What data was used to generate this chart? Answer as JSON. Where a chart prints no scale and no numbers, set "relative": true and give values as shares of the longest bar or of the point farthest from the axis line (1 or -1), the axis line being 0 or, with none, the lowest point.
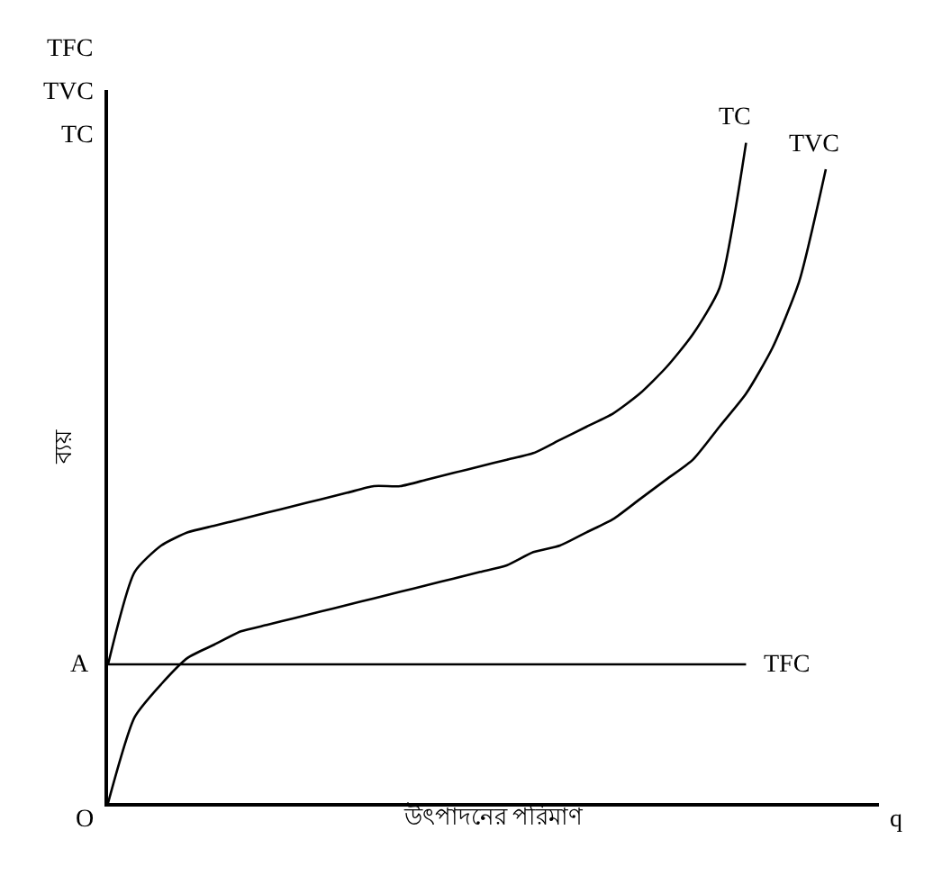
{
  "chart_data": {
    "type": "line",
    "relative": true,
    "xlabel": "উৎপাদনের পরিমাণ",
    "ylabel": "ব্যয়",
    "categories": [
      null,
      null,
      null,
      null,
      null,
      null,
      null,
      null,
      null,
      null,
      null,
      null,
      null,
      null,
      null,
      null,
      null,
      null,
      null,
      null,
      null,
      null,
      null,
      null,
      null,
      null,
      null,
      null
    ],
    "series": [
      {
        "name": "TC",
        "color": "#000000",
        "values": [
          0.21,
          0.35,
          0.39,
          0.41,
          0.42,
          0.43,
          0.44,
          0.45,
          0.46,
          0.47,
          0.48,
          0.48,
          0.49,
          0.5,
          0.51,
          0.52,
          0.53,
          0.55,
          0.57,
          0.59,
          0.62,
          0.66,
          0.71,
          0.78,
          1,
          null,
          null,
          null
        ]
      },
      {
        "name": "TVC",
        "color": "#000000",
        "values": [
          0,
          0.13,
          0.18,
          0.22,
          0.24,
          0.26,
          0.27,
          0.28,
          0.29,
          0.3,
          0.31,
          0.32,
          0.33,
          0.34,
          0.35,
          0.36,
          0.38,
          0.39,
          0.41,
          0.43,
          0.46,
          0.49,
          0.52,
          0.57,
          0.62,
          0.69,
          0.79,
          0.96
        ]
      },
      {
        "name": "TFC",
        "color": "#000000",
        "values": [
          0.21,
          0.21,
          0.21,
          0.21,
          0.21,
          0.21,
          0.21,
          0.21,
          0.21,
          0.21,
          0.21,
          0.21,
          0.21,
          0.21,
          0.21,
          0.21,
          0.21,
          0.21,
          0.21,
          0.21,
          0.21,
          0.21,
          0.21,
          0.21,
          0.21,
          null,
          null,
          null
        ]
      }
    ],
    "annotations": [
      "TFC",
      "TVC",
      "TC",
      "A",
      "O",
      "q"
    ],
    "tick_labels": false,
    "legend": false,
    "marker": "none",
    "line_style": "solid"
  }
}
